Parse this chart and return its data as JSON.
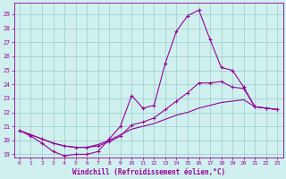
{
  "xlabel": "Windchill (Refroidissement éolien,°C)",
  "bg_color": "#cff0ee",
  "line_color": "#990099",
  "grid_color": "#99cccc",
  "xlim": [
    -0.5,
    23.5
  ],
  "ylim": [
    18.8,
    29.8
  ],
  "xticks": [
    0,
    1,
    2,
    3,
    4,
    5,
    6,
    7,
    8,
    9,
    10,
    11,
    12,
    13,
    14,
    15,
    16,
    17,
    18,
    19,
    20,
    21,
    22,
    23
  ],
  "yticks": [
    19,
    20,
    21,
    22,
    23,
    24,
    25,
    26,
    27,
    28,
    29
  ],
  "curve1": {
    "x": [
      0,
      1,
      2,
      3,
      4,
      5,
      6,
      7,
      8,
      9,
      10,
      11,
      12,
      13,
      14,
      15,
      16,
      17,
      18,
      19,
      20,
      21,
      22,
      23
    ],
    "y": [
      20.7,
      20.3,
      19.8,
      19.2,
      18.9,
      19.0,
      19.0,
      19.2,
      20.1,
      21.0,
      23.2,
      22.3,
      22.5,
      25.5,
      27.8,
      28.9,
      29.3,
      27.2,
      25.2,
      25.0,
      23.8,
      22.4,
      22.3,
      22.2
    ]
  },
  "curve2": {
    "x": [
      0,
      1,
      2,
      3,
      4,
      5,
      6,
      7,
      8,
      9,
      10,
      11,
      12,
      13,
      14,
      15,
      16,
      17,
      18,
      19,
      20,
      21,
      22,
      23
    ],
    "y": [
      20.7,
      20.4,
      20.1,
      19.8,
      19.6,
      19.5,
      19.5,
      19.6,
      19.9,
      20.3,
      21.1,
      21.3,
      21.6,
      22.2,
      22.8,
      23.4,
      24.1,
      24.1,
      24.2,
      23.8,
      23.7,
      22.4,
      22.3,
      22.2
    ]
  },
  "curve3": {
    "x": [
      0,
      1,
      2,
      3,
      4,
      5,
      6,
      7,
      8,
      9,
      10,
      11,
      12,
      13,
      14,
      15,
      16,
      17,
      18,
      19,
      20,
      21,
      22,
      23
    ],
    "y": [
      20.7,
      20.4,
      20.1,
      19.8,
      19.6,
      19.5,
      19.5,
      19.7,
      20.0,
      20.4,
      20.8,
      21.0,
      21.2,
      21.5,
      21.8,
      22.0,
      22.3,
      22.5,
      22.7,
      22.8,
      22.9,
      22.4,
      22.3,
      22.2
    ]
  }
}
